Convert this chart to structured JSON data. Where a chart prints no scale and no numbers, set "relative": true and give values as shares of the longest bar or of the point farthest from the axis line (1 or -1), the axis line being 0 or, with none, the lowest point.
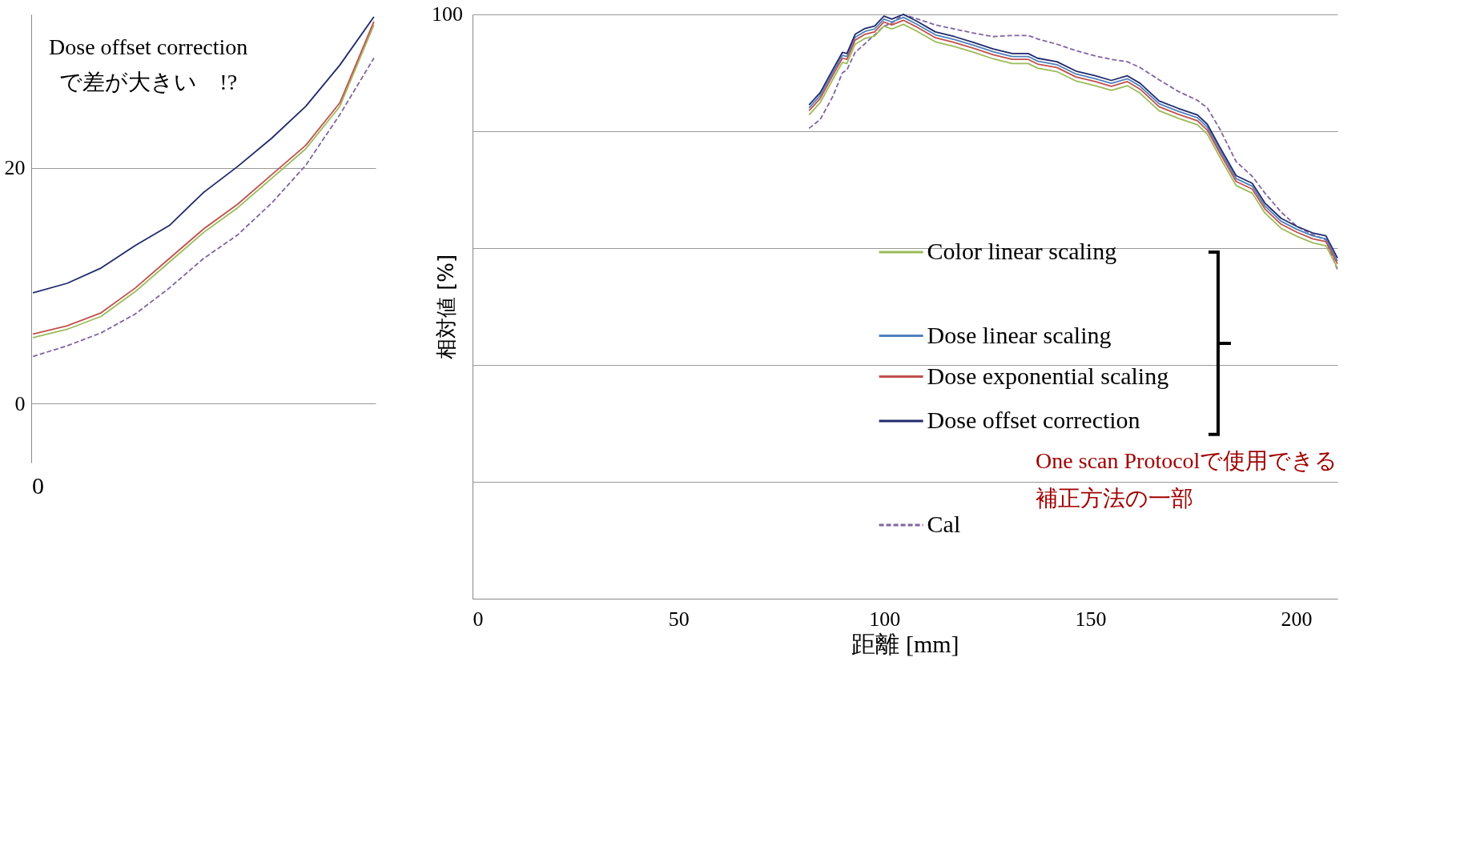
{
  "chart_data": [
    {
      "type": "line",
      "xlabel": "距離 [mm]",
      "ylabel": "相対値 [%]",
      "xlim": [
        0,
        210
      ],
      "xticks": [
        0,
        50,
        100,
        150,
        200
      ],
      "relative": true,
      "grid": "y",
      "legend": "bottom",
      "annotations": [
        "100",
        "One scan Protocolで使用できる",
        "補正方法の一部"
      ],
      "x": [
        81.7,
        84.4,
        87.5,
        89.8,
        90.9,
        92.9,
        95.3,
        97.6,
        99.9,
        101.8,
        104.6,
        107.7,
        112.4,
        117,
        121.7,
        126.4,
        131,
        134.9,
        137.2,
        141.9,
        146.5,
        151.2,
        155.1,
        159,
        162.1,
        166.7,
        171.4,
        176,
        178.4,
        181.5,
        185.4,
        189.3,
        192.4,
        196.3,
        200.2,
        204,
        207.2,
        210
      ],
      "series": [
        {
          "name": "Color linear scaling",
          "color": "#9bbb59",
          "line_style": "solid",
          "values": [
            0.828,
            0.849,
            0.889,
            0.918,
            0.916,
            0.949,
            0.959,
            0.963,
            0.98,
            0.975,
            0.983,
            0.972,
            0.953,
            0.945,
            0.935,
            0.924,
            0.916,
            0.916,
            0.908,
            0.902,
            0.886,
            0.878,
            0.87,
            0.878,
            0.865,
            0.835,
            0.822,
            0.811,
            0.795,
            0.755,
            0.707,
            0.694,
            0.66,
            0.634,
            0.62,
            0.609,
            0.604,
            0.566
          ]
        },
        {
          "name": "Dose linear scaling",
          "color": "#4f81bd",
          "line_style": "solid",
          "values": [
            0.84,
            0.861,
            0.901,
            0.93,
            0.928,
            0.961,
            0.971,
            0.975,
            0.992,
            0.987,
            0.995,
            0.984,
            0.965,
            0.957,
            0.947,
            0.936,
            0.928,
            0.928,
            0.92,
            0.914,
            0.898,
            0.89,
            0.882,
            0.89,
            0.877,
            0.847,
            0.834,
            0.823,
            0.807,
            0.767,
            0.719,
            0.706,
            0.672,
            0.646,
            0.632,
            0.621,
            0.616,
            0.578
          ]
        },
        {
          "name": "Dose exponential scaling",
          "color": "#c0504d",
          "line_style": "solid",
          "values": [
            0.835,
            0.856,
            0.896,
            0.925,
            0.923,
            0.956,
            0.966,
            0.97,
            0.987,
            0.982,
            0.99,
            0.979,
            0.96,
            0.952,
            0.942,
            0.931,
            0.923,
            0.923,
            0.915,
            0.909,
            0.893,
            0.885,
            0.877,
            0.885,
            0.872,
            0.842,
            0.829,
            0.818,
            0.802,
            0.762,
            0.714,
            0.701,
            0.667,
            0.641,
            0.627,
            0.616,
            0.611,
            0.573
          ]
        },
        {
          "name": "Dose offset correction",
          "color": "#1f2a6b",
          "line_style": "solid",
          "values": [
            0.845,
            0.866,
            0.906,
            0.935,
            0.933,
            0.966,
            0.976,
            0.98,
            0.997,
            0.992,
            1,
            0.989,
            0.97,
            0.962,
            0.952,
            0.941,
            0.933,
            0.933,
            0.925,
            0.919,
            0.903,
            0.895,
            0.887,
            0.895,
            0.882,
            0.852,
            0.839,
            0.828,
            0.812,
            0.772,
            0.724,
            0.711,
            0.677,
            0.651,
            0.637,
            0.626,
            0.621,
            0.583
          ]
        },
        {
          "name": "Cal",
          "color": "#8064a2",
          "line_style": "dashed",
          "values": [
            0.805,
            0.82,
            0.86,
            0.9,
            0.905,
            0.935,
            0.95,
            0.965,
            0.98,
            0.985,
            1,
            0.993,
            0.982,
            0.975,
            0.968,
            0.962,
            0.964,
            0.964,
            0.958,
            0.949,
            0.938,
            0.929,
            0.923,
            0.919,
            0.909,
            0.888,
            0.868,
            0.853,
            0.84,
            0.803,
            0.748,
            0.723,
            0.694,
            0.662,
            0.637,
            0.623,
            0.614,
            0.563
          ]
        }
      ]
    },
    {
      "type": "line",
      "ylim": [
        -5,
        33
      ],
      "yticks": [
        0,
        20
      ],
      "grid": "y",
      "categories": [
        null,
        null,
        null,
        null,
        null,
        null,
        null,
        null,
        null,
        null,
        null
      ],
      "annotations": [
        "Dose offset correction",
        "で差が大きい　!?",
        "0"
      ],
      "series": [
        {
          "color": "#1f2a6b",
          "line_style": "solid",
          "values": [
            9.4,
            10.2,
            11.5,
            13.4,
            15.1,
            17.9,
            20.1,
            22.5,
            25.2,
            28.7,
            32.8
          ]
        },
        {
          "color": "#9bbb59",
          "line_style": "solid",
          "values": [
            5.6,
            6.3,
            7.4,
            9.5,
            12.0,
            14.5,
            16.6,
            19.1,
            21.6,
            25.2,
            32.1
          ]
        },
        {
          "color": "#4f81bd",
          "line_style": "solid",
          "values": [
            null,
            null,
            null,
            null,
            null,
            null,
            null,
            null,
            null,
            null,
            null
          ]
        },
        {
          "color": "#c0504d",
          "line_style": "solid",
          "values": [
            5.9,
            6.6,
            7.7,
            9.8,
            12.3,
            14.8,
            16.9,
            19.4,
            21.9,
            25.5,
            32.4
          ]
        },
        {
          "color": "#8064a2",
          "line_style": "dashed",
          "values": [
            4.0,
            4.9,
            6.0,
            7.6,
            9.8,
            12.3,
            14.3,
            17.0,
            20.2,
            24.5,
            29.3
          ]
        }
      ]
    }
  ]
}
